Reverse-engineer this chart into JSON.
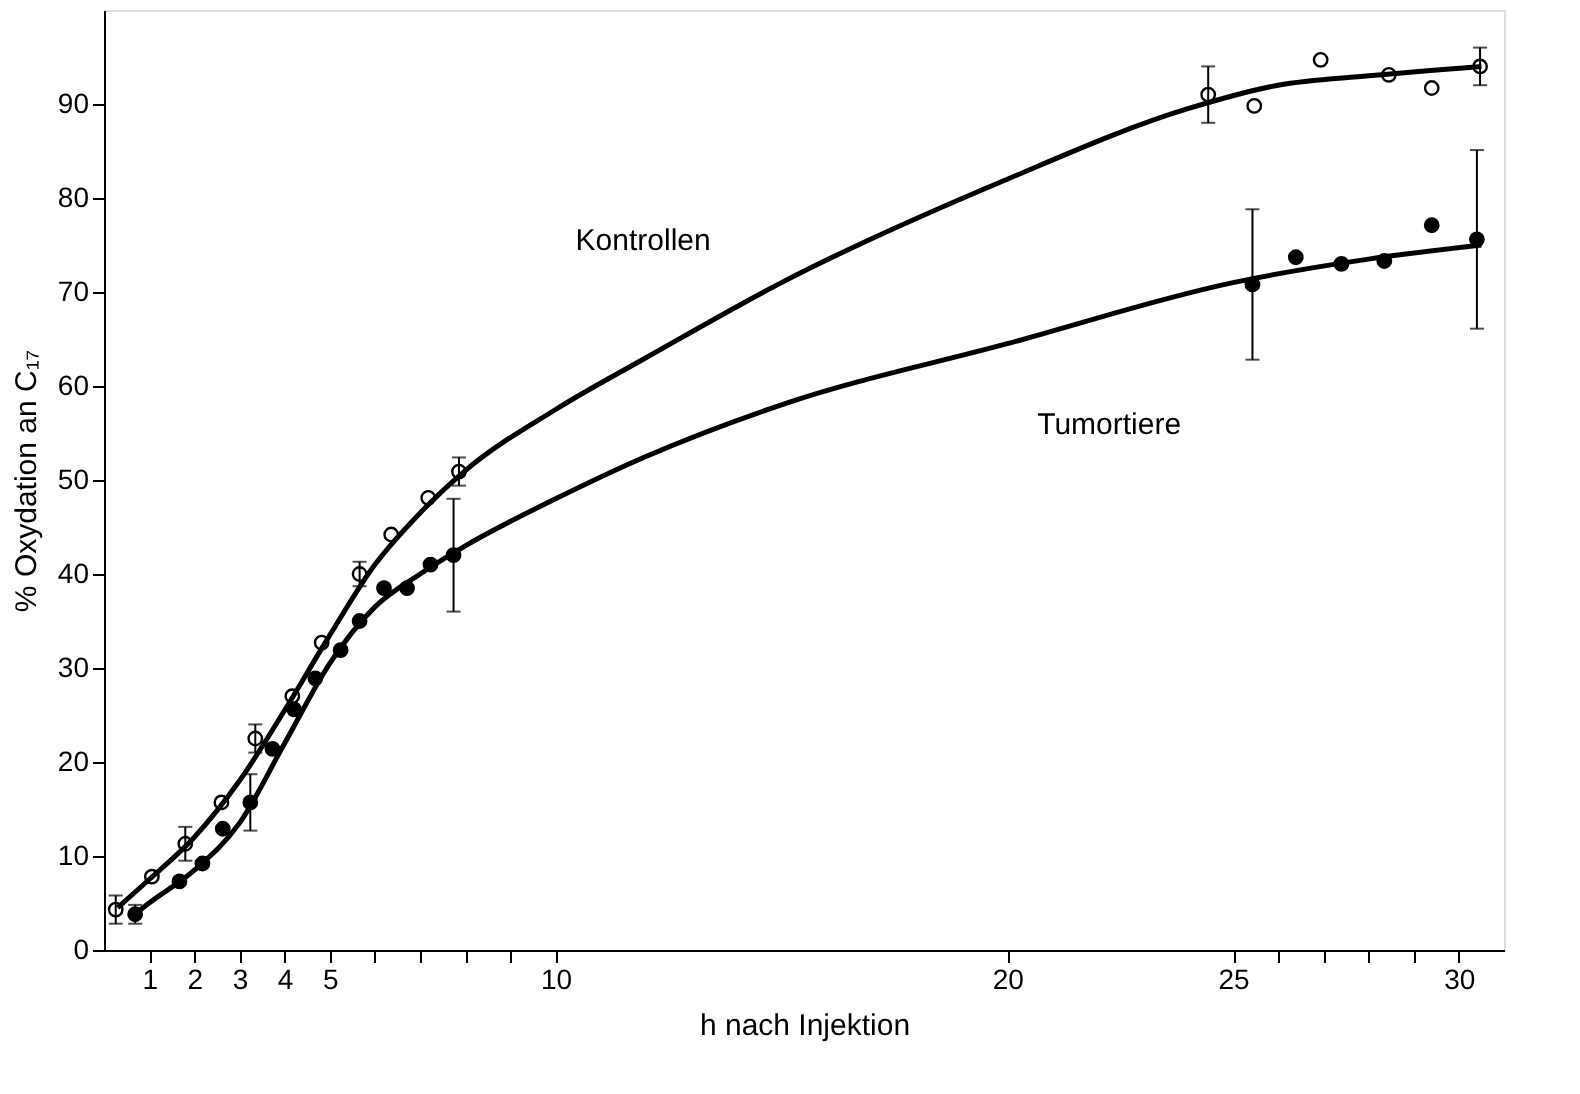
{
  "chart_data": {
    "type": "scatter",
    "xlabel": "h nach Injektion",
    "ylabel": "% Oxydation an C₁₇",
    "xlim": [
      0,
      31
    ],
    "ylim": [
      0,
      100
    ],
    "xticks": [
      1,
      2,
      3,
      4,
      5,
      {
        "value": 6,
        "label": null
      },
      {
        "value": 7,
        "label": null
      },
      {
        "value": 8,
        "label": null
      },
      {
        "value": 9,
        "label": null
      },
      10,
      20,
      25,
      {
        "value": 26,
        "label": null
      },
      {
        "value": 27,
        "label": null
      },
      {
        "value": 28,
        "label": null
      },
      {
        "value": 29,
        "label": null
      },
      30
    ],
    "yticks": [
      0,
      10,
      20,
      30,
      40,
      50,
      60,
      70,
      80,
      90
    ],
    "grid": false,
    "series": [
      {
        "type": "scatter",
        "marker": "circle",
        "color": "#ffffff",
        "x": [
          0.26,
          1.06,
          1.8,
          2.6,
          3.35,
          4.17,
          4.82,
          5.66,
          6.36,
          7.18,
          7.86,
          24.45,
          25.47,
          26.94,
          28.45,
          29.4,
          30.47
        ],
        "values": [
          4.3,
          7.8,
          11.3,
          15.7,
          22.5,
          27.0,
          32.7,
          40.0,
          44.2,
          48.1,
          50.9,
          91.0,
          89.8,
          94.7,
          93.1,
          91.7,
          94.0
        ],
        "errors": [
          1.5,
          null,
          1.8,
          null,
          1.5,
          null,
          null,
          1.3,
          null,
          null,
          1.5,
          3,
          null,
          null,
          null,
          null,
          2
        ]
      },
      {
        "type": "scatter",
        "marker": "circle",
        "color": "#000000",
        "x": [
          0.69,
          1.67,
          2.18,
          2.63,
          3.24,
          3.73,
          4.21,
          4.68,
          5.24,
          5.66,
          6.2,
          6.71,
          7.23,
          7.74,
          25.43,
          26.39,
          27.4,
          28.35,
          29.4,
          30.4
        ],
        "values": [
          3.8,
          7.3,
          9.2,
          12.9,
          15.7,
          21.4,
          25.6,
          28.9,
          31.9,
          35.0,
          38.5,
          38.5,
          41.0,
          42.0,
          70.8,
          73.7,
          73.0,
          73.3,
          77.1,
          75.6
        ],
        "errors": [
          1,
          null,
          null,
          null,
          3,
          null,
          null,
          null,
          null,
          null,
          null,
          null,
          null,
          6,
          8,
          null,
          null,
          null,
          null,
          9.5
        ]
      },
      {
        "type": "line",
        "name": "Kontrollen",
        "marker": "none",
        "line_style": "solid",
        "color": "#000000",
        "x": [
          0.3,
          1,
          2,
          3,
          4,
          5,
          6,
          7,
          8,
          10,
          12,
          15,
          20,
          24,
          26,
          28,
          30.5
        ],
        "values": [
          4.5,
          7.5,
          12,
          18,
          25.5,
          33.5,
          41,
          46.5,
          51,
          57.5,
          63,
          71,
          82,
          89.5,
          92,
          93,
          94
        ]
      },
      {
        "type": "line",
        "name": "Tumortiere",
        "marker": "none",
        "line_style": "solid",
        "color": "#000000",
        "x": [
          0.6,
          1,
          2,
          3,
          4,
          5,
          6,
          7,
          8,
          10,
          12,
          15,
          20,
          25,
          28,
          30.5
        ],
        "values": [
          3.5,
          5,
          8.5,
          13.5,
          22,
          30.5,
          36.5,
          40,
          43,
          48,
          52.5,
          58,
          64.5,
          71,
          73.5,
          75
        ]
      }
    ]
  }
}
